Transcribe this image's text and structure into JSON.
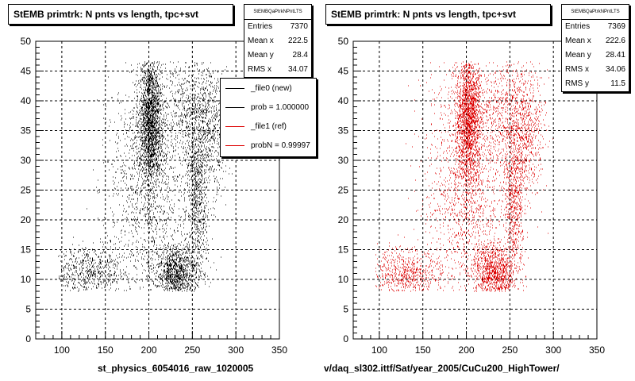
{
  "colors": {
    "black": "#000000",
    "red": "#dd0000"
  },
  "pads": [
    {
      "title": "StEMB primtrk: N pnts vs length, tpc+svt",
      "footer": "st_physics_6054016_raw_1020005",
      "stats": {
        "name": "StEMBQaPtrkNPntLTS",
        "rows": [
          {
            "label": "Entries",
            "value": "7370"
          },
          {
            "label": "Mean x",
            "value": "222.5"
          },
          {
            "label": "Mean y",
            "value": "28.4"
          },
          {
            "label": "RMS x",
            "value": "34.07"
          }
        ]
      },
      "legend": [
        {
          "label": "_file0 (new)",
          "color": "#000000"
        },
        {
          "label": "prob = 1.000000",
          "color": "#000000"
        },
        {
          "label": "_file1 (ref)",
          "color": "#dd0000"
        },
        {
          "label": "probN = 0.99997",
          "color": "#dd0000"
        }
      ]
    },
    {
      "title": "StEMB primtrk: N pnts vs length, tpc+svt",
      "footer": "v/daq_sl302.ittf/Sat/year_2005/CuCu200_HighTower/",
      "stats": {
        "name": "StEMBQaPtrkNPntLTS",
        "rows": [
          {
            "label": "Entries",
            "value": "7369"
          },
          {
            "label": "Mean x",
            "value": "222.6"
          },
          {
            "label": "Mean y",
            "value": "28.41"
          },
          {
            "label": "RMS x",
            "value": "34.06"
          },
          {
            "label": "RMS y",
            "value": "11.5"
          }
        ]
      }
    }
  ],
  "chart_data": [
    {
      "type": "scatter",
      "title": "StEMB primtrk: N pnts vs length, tpc+svt",
      "xlim": [
        70,
        350
      ],
      "ylim": [
        0,
        50
      ],
      "xticks": [
        100,
        150,
        200,
        250,
        300,
        350
      ],
      "yticks": [
        0,
        5,
        10,
        15,
        20,
        25,
        30,
        35,
        40,
        45,
        50
      ],
      "grid": true,
      "entries": 7370,
      "series": [
        {
          "name": "_file0 (new)",
          "color": "#000000"
        }
      ]
    },
    {
      "type": "scatter",
      "title": "StEMB primtrk: N pnts vs length, tpc+svt",
      "xlim": [
        70,
        350
      ],
      "ylim": [
        0,
        50
      ],
      "xticks": [
        100,
        150,
        200,
        250,
        300,
        350
      ],
      "yticks": [
        0,
        5,
        10,
        15,
        20,
        25,
        30,
        35,
        40,
        45,
        50
      ],
      "grid": true,
      "entries": 7369,
      "series": [
        {
          "name": "_file1 (ref)",
          "color": "#dd0000"
        }
      ]
    }
  ]
}
